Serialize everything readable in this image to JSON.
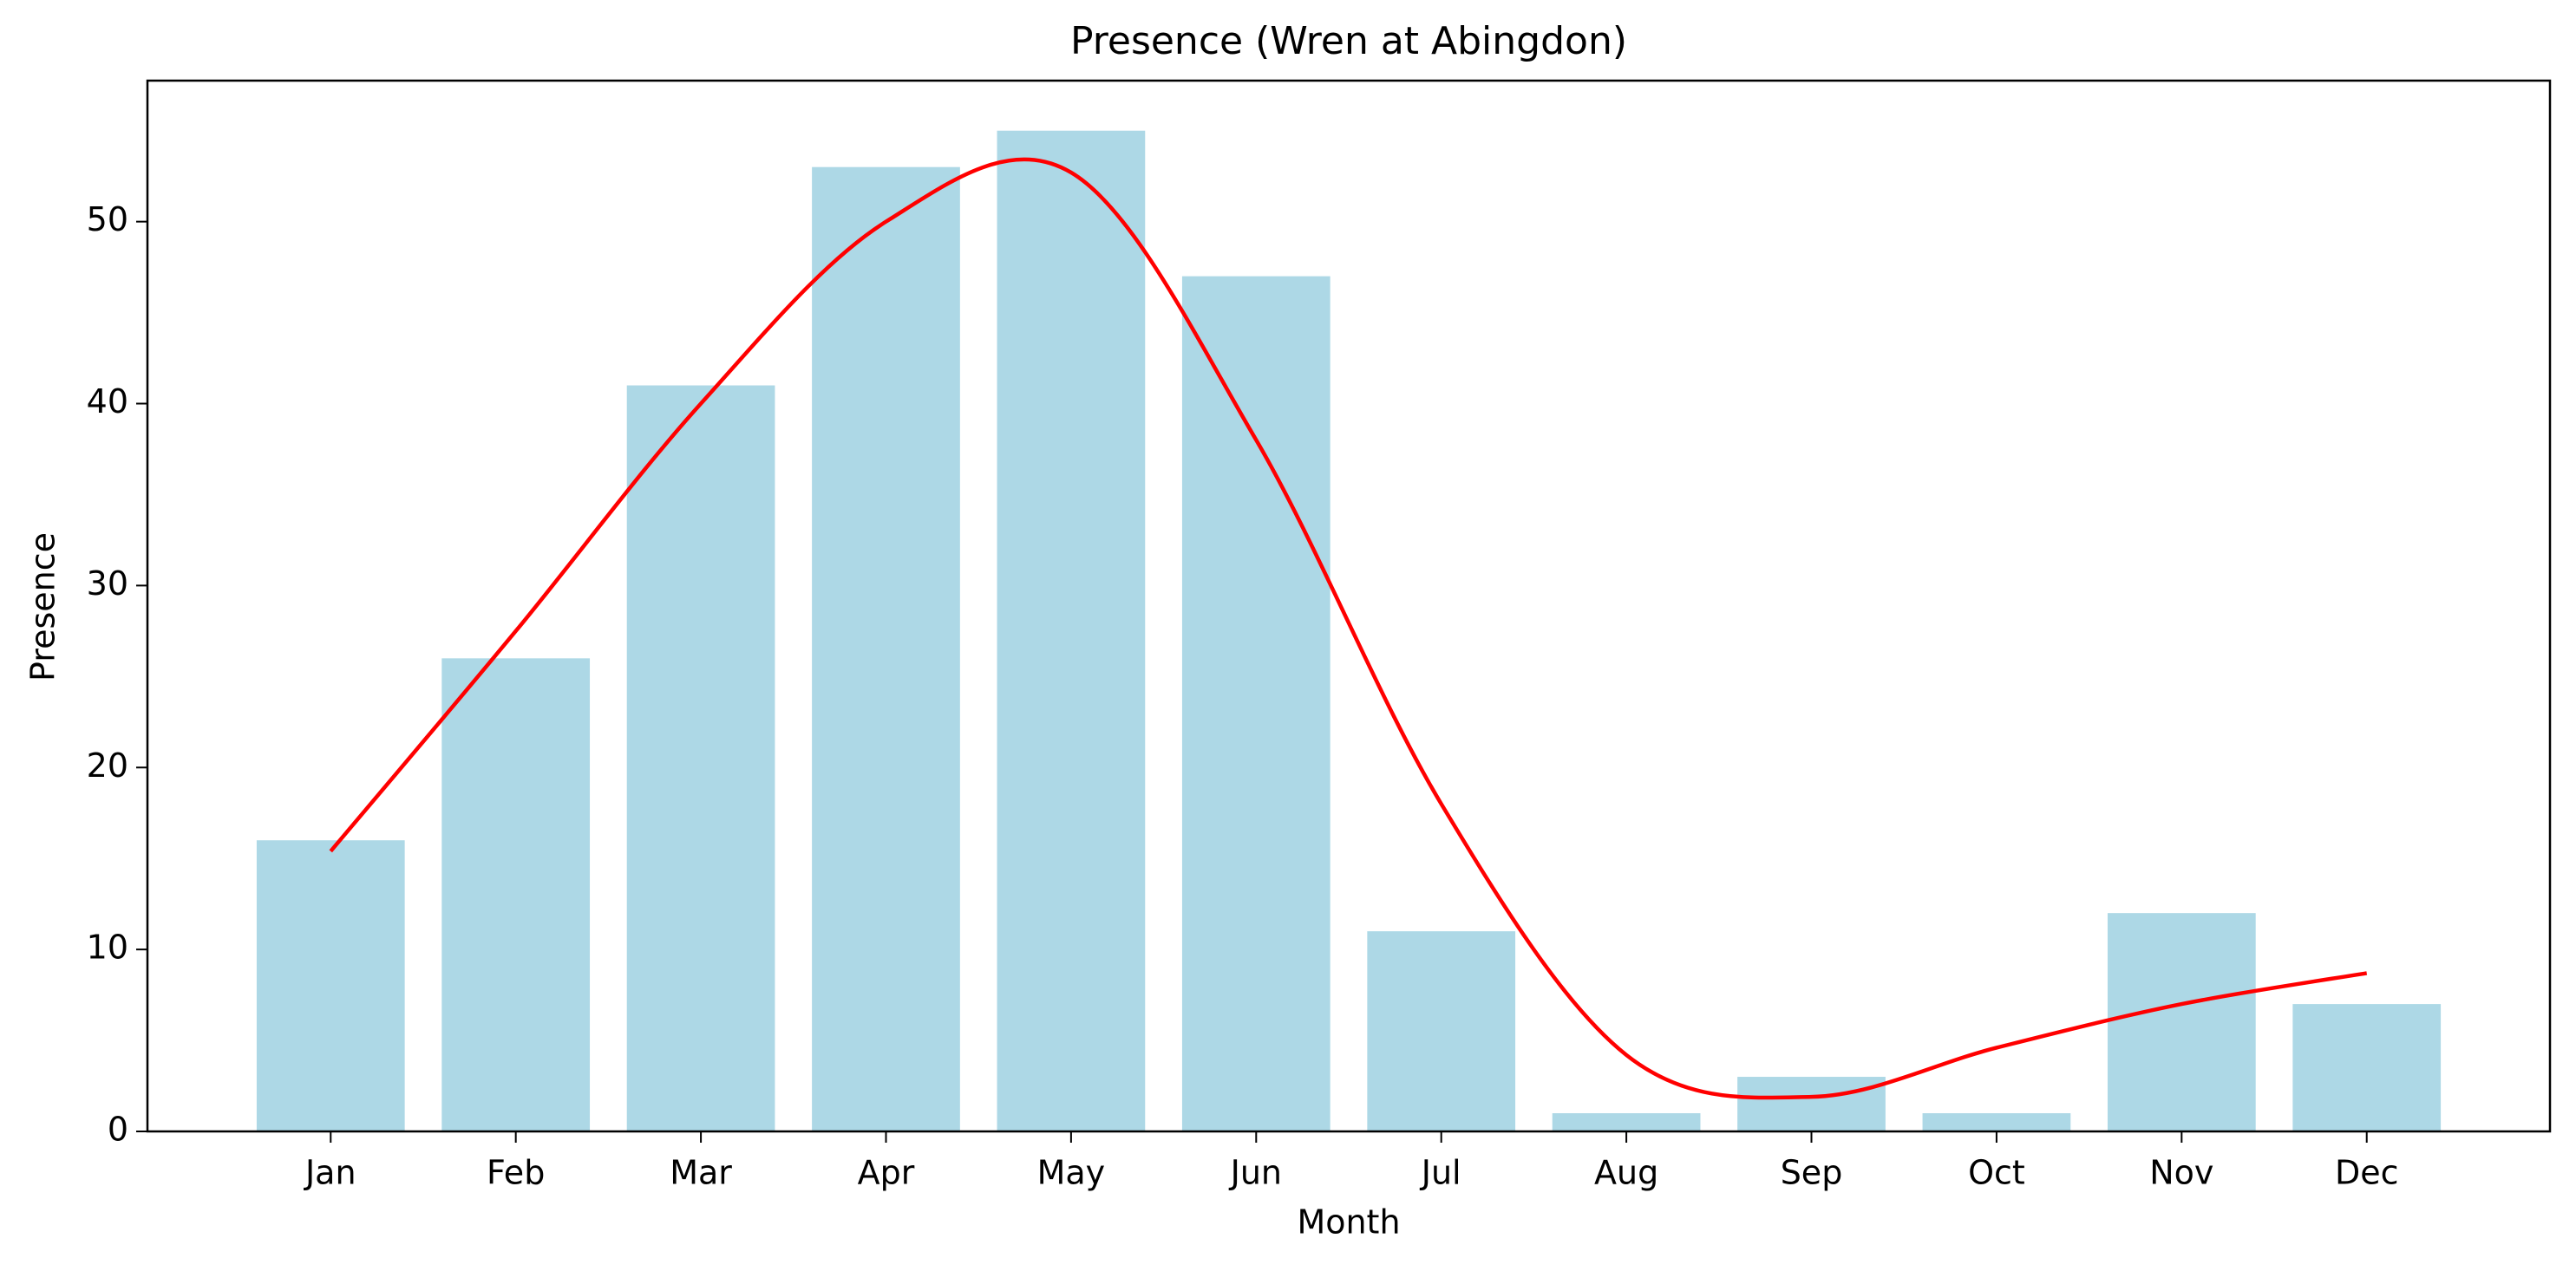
{
  "chart_data": {
    "type": "bar",
    "title": "Presence (Wren at Abingdon)",
    "xlabel": "Month",
    "ylabel": "Presence",
    "categories": [
      "Jan",
      "Feb",
      "Mar",
      "Apr",
      "May",
      "Jun",
      "Jul",
      "Aug",
      "Sep",
      "Oct",
      "Nov",
      "Dec"
    ],
    "values": [
      16,
      26,
      41,
      53,
      55,
      47,
      11,
      1,
      3,
      1,
      12,
      7
    ],
    "color": "#add8e6",
    "trend": {
      "type": "line",
      "color": "#ff0000",
      "values": [
        15.4,
        27.5,
        40,
        50,
        52.7,
        38,
        18,
        4.2,
        1.9,
        4.6,
        7,
        8.7
      ]
    },
    "ylim": [
      0,
      57.75
    ],
    "yticks": [
      0,
      10,
      20,
      30,
      40,
      50
    ]
  }
}
